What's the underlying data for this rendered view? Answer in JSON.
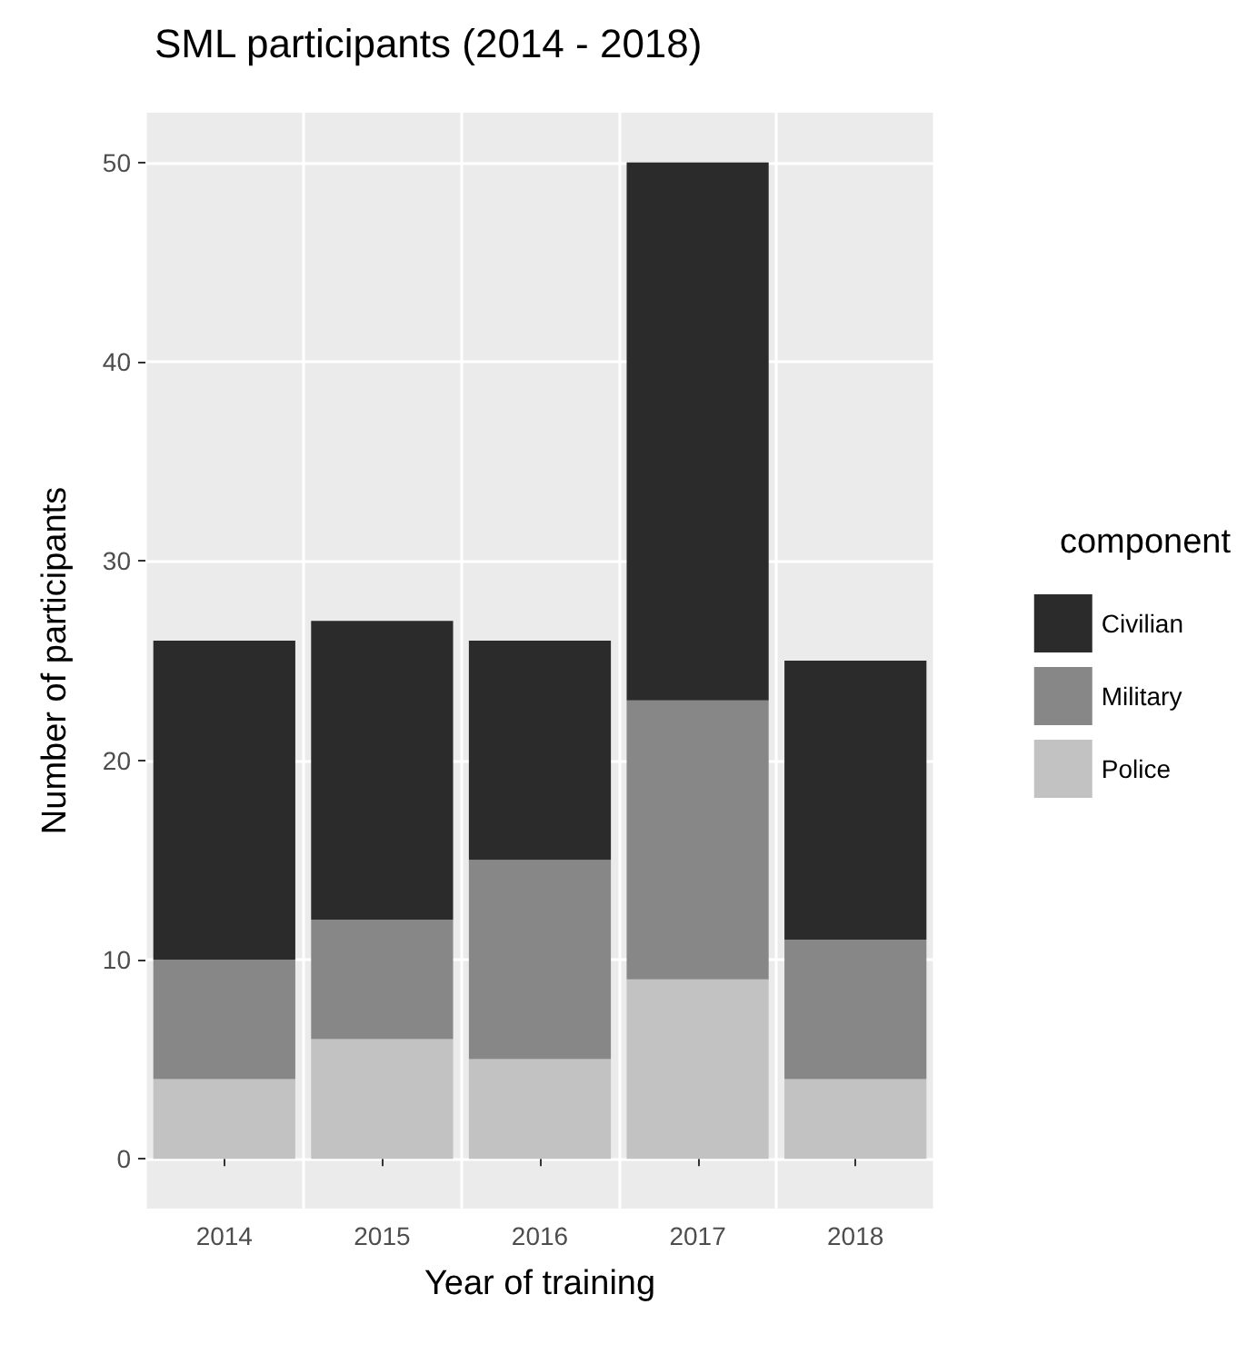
{
  "chart_data": {
    "type": "bar",
    "title": "SML participants (2014 - 2018)",
    "xlabel": "Year of training",
    "ylabel": "Number of participants",
    "legend_title": "component",
    "categories": [
      "2014",
      "2015",
      "2016",
      "2017",
      "2018"
    ],
    "series": [
      {
        "name": "Police",
        "color": "#c2c2c2",
        "values": [
          4,
          6,
          5,
          9,
          4
        ]
      },
      {
        "name": "Military",
        "color": "#878787",
        "values": [
          6,
          6,
          10,
          14,
          7
        ]
      },
      {
        "name": "Civilian",
        "color": "#2b2b2b",
        "values": [
          16,
          15,
          11,
          27,
          14
        ]
      }
    ],
    "stacked": true,
    "ylim": [
      -2.5,
      52.5
    ],
    "yticks": [
      0,
      10,
      20,
      30,
      40,
      50
    ],
    "grid": true,
    "legend": "right"
  }
}
